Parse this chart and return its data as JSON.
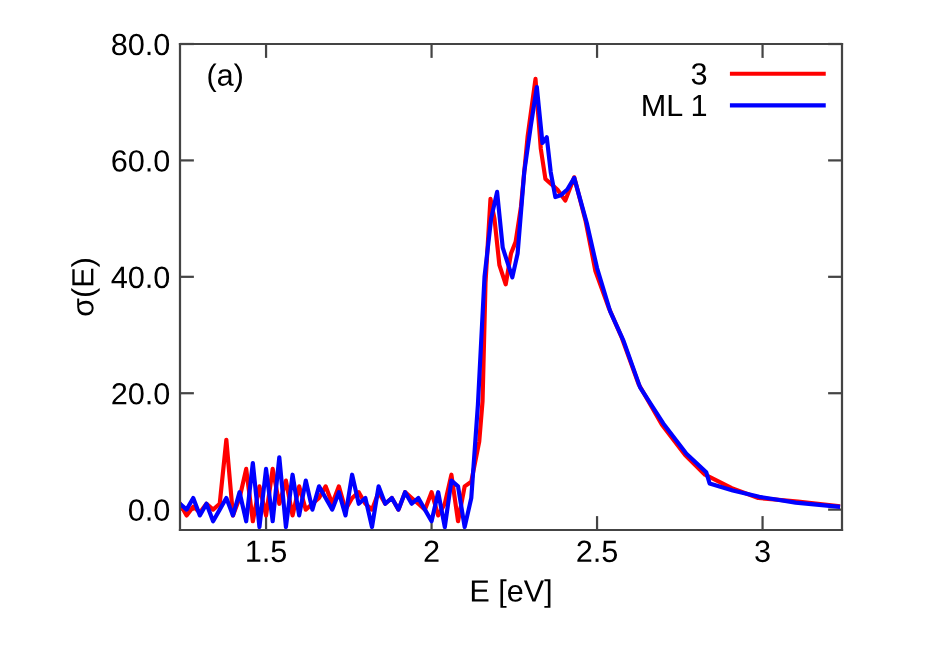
{
  "chart_data": {
    "type": "line",
    "xlabel": "E [eV]",
    "ylabel": "σ(E)",
    "annotations": [
      "(a)"
    ],
    "xlim": [
      1.24,
      3.24
    ],
    "ylim": [
      -3.5,
      80
    ],
    "xticks": [
      1.5,
      2,
      2.5,
      3
    ],
    "yticks": [
      {
        "value": 0,
        "label": "0.0"
      },
      {
        "value": 20,
        "label": "20.0"
      },
      {
        "value": 40,
        "label": "40.0"
      },
      {
        "value": 60,
        "label": "60.0"
      },
      {
        "value": 80,
        "label": "80.0"
      }
    ],
    "grid": false,
    "legend": "top right",
    "marker": "none",
    "line_style": "solid",
    "series": [
      {
        "name": "3",
        "color": "#ff0000",
        "x": [
          1.24,
          1.26,
          1.28,
          1.3,
          1.32,
          1.34,
          1.36,
          1.38,
          1.4,
          1.42,
          1.44,
          1.46,
          1.48,
          1.5,
          1.52,
          1.54,
          1.56,
          1.58,
          1.6,
          1.62,
          1.64,
          1.66,
          1.68,
          1.7,
          1.72,
          1.74,
          1.76,
          1.78,
          1.8,
          1.82,
          1.84,
          1.86,
          1.88,
          1.9,
          1.92,
          1.94,
          1.96,
          1.98,
          2.0,
          2.02,
          2.04,
          2.06,
          2.08,
          2.1,
          2.12,
          2.144,
          2.154,
          2.163,
          2.178,
          2.19,
          2.205,
          2.224,
          2.24,
          2.254,
          2.27,
          2.29,
          2.314,
          2.33,
          2.344,
          2.36,
          2.38,
          2.404,
          2.431,
          2.465,
          2.495,
          2.535,
          2.575,
          2.626,
          2.696,
          2.766,
          2.826,
          2.907,
          2.987,
          3.107,
          3.228
        ],
        "values": [
          1,
          -1,
          0.5,
          -0.5,
          1,
          0,
          1,
          12,
          -1,
          2,
          7,
          -2,
          4,
          -1,
          7,
          1,
          5,
          -1,
          4,
          0,
          1,
          2,
          4,
          1,
          4,
          0,
          2,
          3,
          1,
          0,
          3,
          1,
          2,
          0,
          3,
          2,
          1,
          0,
          3,
          -1,
          1,
          6,
          -2,
          4,
          4.8,
          11.7,
          18.6,
          39,
          53.4,
          50,
          42,
          38.7,
          44,
          46,
          52,
          64,
          74,
          62,
          56.8,
          56,
          55,
          53.1,
          57.1,
          49.7,
          41,
          34.7,
          29.5,
          21.5,
          14.6,
          9.4,
          6.0,
          3.7,
          2.0,
          1.4,
          0.6
        ]
      },
      {
        "name": "ML 1",
        "color": "#0000ff",
        "x": [
          1.24,
          1.26,
          1.28,
          1.3,
          1.32,
          1.34,
          1.36,
          1.38,
          1.4,
          1.42,
          1.44,
          1.46,
          1.48,
          1.5,
          1.52,
          1.54,
          1.56,
          1.58,
          1.6,
          1.62,
          1.64,
          1.66,
          1.68,
          1.7,
          1.72,
          1.74,
          1.76,
          1.78,
          1.8,
          1.82,
          1.84,
          1.86,
          1.88,
          1.9,
          1.92,
          1.94,
          1.96,
          1.98,
          2.0,
          2.02,
          2.04,
          2.06,
          2.08,
          2.1,
          2.12,
          2.14,
          2.16,
          2.18,
          2.198,
          2.215,
          2.244,
          2.26,
          2.28,
          2.3,
          2.318,
          2.335,
          2.348,
          2.36,
          2.374,
          2.39,
          2.41,
          2.431,
          2.47,
          2.5,
          2.54,
          2.58,
          2.63,
          2.7,
          2.77,
          2.83,
          2.84,
          2.91,
          2.99,
          3.1,
          3.228
        ],
        "values": [
          1,
          0,
          2,
          -1,
          1,
          -2,
          0,
          2,
          -1,
          3,
          -2,
          8,
          -3,
          7,
          -2,
          9,
          -3,
          6,
          -1,
          5,
          0,
          4,
          2,
          0,
          3,
          -1,
          6,
          1,
          2,
          -3,
          4,
          1,
          2,
          0,
          3,
          1,
          2,
          0,
          -2,
          3,
          -3,
          5,
          4,
          -3,
          2,
          18,
          40,
          50,
          54.6,
          45,
          39.9,
          44,
          58,
          66,
          72.6,
          63,
          64,
          58,
          53.7,
          54,
          55,
          57,
          49,
          41.5,
          34,
          29,
          21,
          14.8,
          9.6,
          6.4,
          4.5,
          3.3,
          2.2,
          1.2,
          0.5
        ]
      }
    ]
  }
}
